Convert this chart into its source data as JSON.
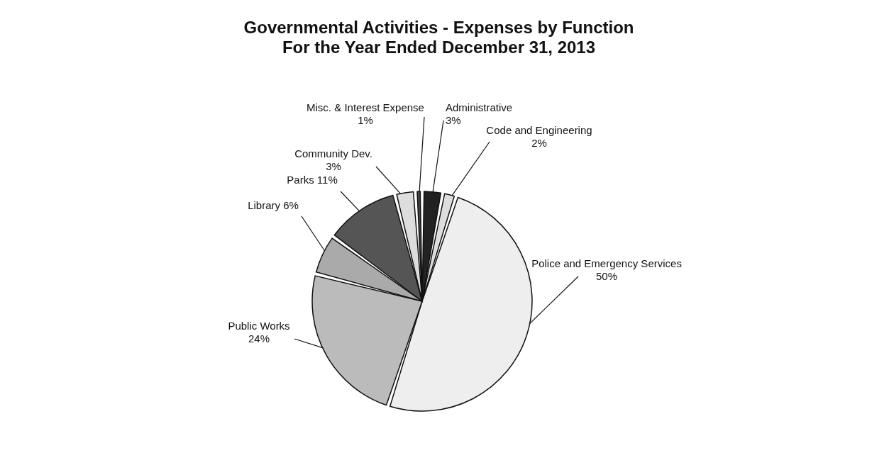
{
  "chart_data": {
    "type": "pie",
    "title": "Governmental Activities - Expenses by Function",
    "subtitle": "For the Year Ended December 31, 2013",
    "categories": [
      "Administrative",
      "Code and Engineering",
      "Police and Emergency Services",
      "Public Works",
      "Library",
      "Parks",
      "Community Dev.",
      "Misc. & Interest Expense"
    ],
    "values": [
      3,
      2,
      50,
      24,
      6,
      11,
      3,
      1
    ],
    "value_labels": [
      "3%",
      "2%",
      "50%",
      "24%",
      "6%",
      "11%",
      "3%",
      "1%"
    ],
    "colors": [
      "#222222",
      "#dddddd",
      "#eeeeee",
      "#bbbbbb",
      "#aaaaaa",
      "#555555",
      "#dddddd",
      "#444444"
    ],
    "legend": false
  }
}
